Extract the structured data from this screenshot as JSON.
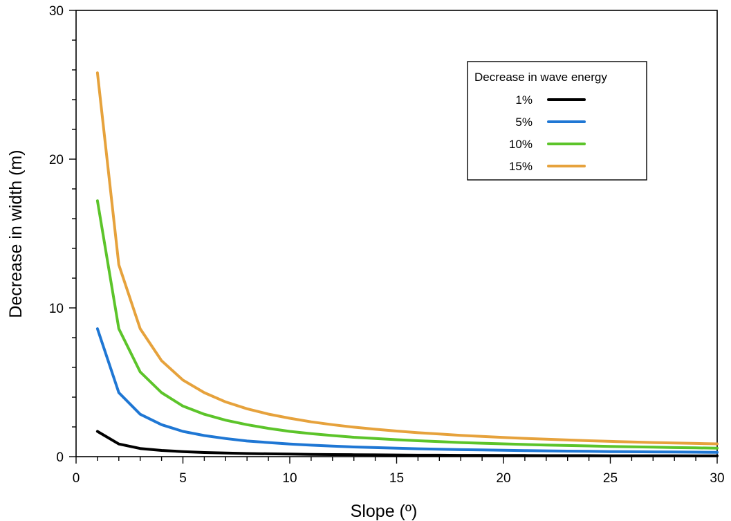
{
  "chart_data": {
    "type": "line",
    "title": "",
    "xlabel": "Slope (º)",
    "ylabel": "Decrease in width (m)",
    "xlim": [
      0,
      30
    ],
    "ylim": [
      0,
      30
    ],
    "xticks": [
      0,
      5,
      10,
      15,
      20,
      25,
      30
    ],
    "yticks": [
      0,
      10,
      20,
      30
    ],
    "grid": false,
    "legend": {
      "title": "Decrease in wave energy",
      "placement": "top-right"
    },
    "x": [
      1,
      2,
      3,
      4,
      5,
      6,
      7,
      8,
      9,
      10,
      11,
      12,
      13,
      14,
      15,
      16,
      17,
      18,
      19,
      20,
      21,
      22,
      23,
      24,
      25,
      26,
      27,
      28,
      29,
      30
    ],
    "series": [
      {
        "name": "1%",
        "color": "#000000",
        "values": [
          1.7,
          0.85,
          0.55,
          0.42,
          0.34,
          0.28,
          0.24,
          0.21,
          0.19,
          0.17,
          0.15,
          0.14,
          0.13,
          0.12,
          0.11,
          0.1,
          0.1,
          0.09,
          0.09,
          0.08,
          0.08,
          0.07,
          0.07,
          0.07,
          0.06,
          0.06,
          0.06,
          0.06,
          0.05,
          0.05
        ]
      },
      {
        "name": "5%",
        "color": "#1f77d4",
        "values": [
          8.6,
          4.3,
          2.85,
          2.15,
          1.7,
          1.42,
          1.22,
          1.05,
          0.95,
          0.85,
          0.77,
          0.71,
          0.65,
          0.61,
          0.57,
          0.53,
          0.5,
          0.47,
          0.45,
          0.43,
          0.41,
          0.39,
          0.37,
          0.36,
          0.34,
          0.33,
          0.32,
          0.31,
          0.3,
          0.29
        ]
      },
      {
        "name": "10%",
        "color": "#5cc42a",
        "values": [
          17.2,
          8.6,
          5.7,
          4.3,
          3.4,
          2.85,
          2.45,
          2.15,
          1.9,
          1.7,
          1.55,
          1.42,
          1.3,
          1.22,
          1.14,
          1.07,
          1.01,
          0.95,
          0.9,
          0.86,
          0.82,
          0.78,
          0.75,
          0.72,
          0.69,
          0.66,
          0.64,
          0.61,
          0.59,
          0.57
        ]
      },
      {
        "name": "15%",
        "color": "#e6a23c",
        "values": [
          25.8,
          12.9,
          8.6,
          6.45,
          5.15,
          4.3,
          3.68,
          3.22,
          2.86,
          2.58,
          2.34,
          2.15,
          1.98,
          1.84,
          1.72,
          1.61,
          1.52,
          1.43,
          1.36,
          1.29,
          1.23,
          1.17,
          1.12,
          1.07,
          1.03,
          0.99,
          0.95,
          0.92,
          0.89,
          0.86
        ]
      }
    ]
  }
}
